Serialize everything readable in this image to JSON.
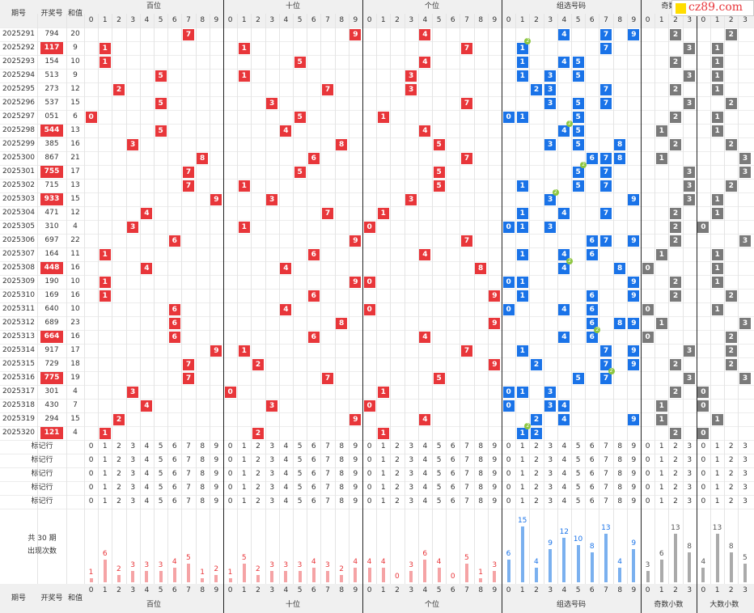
{
  "header": {
    "period_label": "期号",
    "draw_label": "开奖号",
    "sum_label": "和值",
    "groups": [
      "百位",
      "十位",
      "个位",
      "组选号码",
      "奇数小数",
      "大数小数"
    ],
    "top_group_5": "奇数",
    "digits": [
      "0",
      "1",
      "2",
      "3",
      "4",
      "5",
      "6",
      "7",
      "8",
      "9"
    ],
    "ratio_digits": [
      "0",
      "1",
      "2",
      "3"
    ]
  },
  "watermark": "cz89.com",
  "rows": [
    {
      "period": "2025291",
      "draw": "794",
      "sum": "20",
      "hl": false,
      "h": 7,
      "t": 9,
      "u": 4,
      "g": [
        4,
        7,
        9
      ],
      "odd": 2,
      "big": 2
    },
    {
      "period": "2025292",
      "draw": "117",
      "sum": "9",
      "hl": true,
      "h": 1,
      "t": 1,
      "u": 7,
      "g": [
        1,
        7
      ],
      "odd": 3,
      "big": 1
    },
    {
      "period": "2025293",
      "draw": "154",
      "sum": "10",
      "hl": false,
      "h": 1,
      "t": 5,
      "u": 4,
      "g": [
        1,
        4,
        5
      ],
      "odd": 2,
      "big": 1
    },
    {
      "period": "2025294",
      "draw": "513",
      "sum": "9",
      "hl": false,
      "h": 5,
      "t": 1,
      "u": 3,
      "g": [
        1,
        3,
        5
      ],
      "odd": 3,
      "big": 1
    },
    {
      "period": "2025295",
      "draw": "273",
      "sum": "12",
      "hl": false,
      "h": 2,
      "t": 7,
      "u": 3,
      "g": [
        2,
        3,
        7
      ],
      "odd": 2,
      "big": 1
    },
    {
      "period": "2025296",
      "draw": "537",
      "sum": "15",
      "hl": false,
      "h": 5,
      "t": 3,
      "u": 7,
      "g": [
        3,
        5,
        7
      ],
      "odd": 3,
      "big": 2
    },
    {
      "period": "2025297",
      "draw": "051",
      "sum": "6",
      "hl": false,
      "h": 0,
      "t": 5,
      "u": 1,
      "g": [
        0,
        1,
        5
      ],
      "odd": 2,
      "big": 1
    },
    {
      "period": "2025298",
      "draw": "544",
      "sum": "13",
      "hl": true,
      "h": 5,
      "t": 4,
      "u": 4,
      "g": [
        4,
        5
      ],
      "odd": 1,
      "big": 1
    },
    {
      "period": "2025299",
      "draw": "385",
      "sum": "16",
      "hl": false,
      "h": 3,
      "t": 8,
      "u": 5,
      "g": [
        3,
        5,
        8
      ],
      "odd": 2,
      "big": 2
    },
    {
      "period": "2025300",
      "draw": "867",
      "sum": "21",
      "hl": false,
      "h": 8,
      "t": 6,
      "u": 7,
      "g": [
        6,
        7,
        8
      ],
      "odd": 1,
      "big": 3
    },
    {
      "period": "2025301",
      "draw": "755",
      "sum": "17",
      "hl": true,
      "h": 7,
      "t": 5,
      "u": 5,
      "g": [
        5,
        7
      ],
      "odd": 3,
      "big": 3
    },
    {
      "period": "2025302",
      "draw": "715",
      "sum": "13",
      "hl": false,
      "h": 7,
      "t": 1,
      "u": 5,
      "g": [
        1,
        5,
        7
      ],
      "odd": 3,
      "big": 2
    },
    {
      "period": "2025303",
      "draw": "933",
      "sum": "15",
      "hl": true,
      "h": 9,
      "t": 3,
      "u": 3,
      "g": [
        3,
        9
      ],
      "odd": 3,
      "big": 1
    },
    {
      "period": "2025304",
      "draw": "471",
      "sum": "12",
      "hl": false,
      "h": 4,
      "t": 7,
      "u": 1,
      "g": [
        1,
        4,
        7
      ],
      "odd": 2,
      "big": 1
    },
    {
      "period": "2025305",
      "draw": "310",
      "sum": "4",
      "hl": false,
      "h": 3,
      "t": 1,
      "u": 0,
      "g": [
        0,
        1,
        3
      ],
      "odd": 2,
      "big": 0
    },
    {
      "period": "2025306",
      "draw": "697",
      "sum": "22",
      "hl": false,
      "h": 6,
      "t": 9,
      "u": 7,
      "g": [
        6,
        7,
        9
      ],
      "odd": 2,
      "big": 3
    },
    {
      "period": "2025307",
      "draw": "164",
      "sum": "11",
      "hl": false,
      "h": 1,
      "t": 6,
      "u": 4,
      "g": [
        1,
        4,
        6
      ],
      "odd": 1,
      "big": 1
    },
    {
      "period": "2025308",
      "draw": "448",
      "sum": "16",
      "hl": true,
      "h": 4,
      "t": 4,
      "u": 8,
      "g": [
        4,
        8
      ],
      "odd": 0,
      "big": 1
    },
    {
      "period": "2025309",
      "draw": "190",
      "sum": "10",
      "hl": false,
      "h": 1,
      "t": 9,
      "u": 0,
      "g": [
        0,
        1,
        9
      ],
      "odd": 2,
      "big": 1
    },
    {
      "period": "2025310",
      "draw": "169",
      "sum": "16",
      "hl": false,
      "h": 1,
      "t": 6,
      "u": 9,
      "g": [
        1,
        6,
        9
      ],
      "odd": 2,
      "big": 2
    },
    {
      "period": "2025311",
      "draw": "640",
      "sum": "10",
      "hl": false,
      "h": 6,
      "t": 4,
      "u": 0,
      "g": [
        0,
        4,
        6
      ],
      "odd": 0,
      "big": 1
    },
    {
      "period": "2025312",
      "draw": "689",
      "sum": "23",
      "hl": false,
      "h": 6,
      "t": 8,
      "u": 9,
      "g": [
        6,
        8,
        9
      ],
      "odd": 1,
      "big": 3
    },
    {
      "period": "2025313",
      "draw": "664",
      "sum": "16",
      "hl": true,
      "h": 6,
      "t": 6,
      "u": 4,
      "g": [
        4,
        6
      ],
      "odd": 0,
      "big": 2
    },
    {
      "period": "2025314",
      "draw": "917",
      "sum": "17",
      "hl": false,
      "h": 9,
      "t": 1,
      "u": 7,
      "g": [
        1,
        7,
        9
      ],
      "odd": 3,
      "big": 2
    },
    {
      "period": "2025315",
      "draw": "729",
      "sum": "18",
      "hl": false,
      "h": 7,
      "t": 2,
      "u": 9,
      "g": [
        2,
        7,
        9
      ],
      "odd": 2,
      "big": 2
    },
    {
      "period": "2025316",
      "draw": "775",
      "sum": "19",
      "hl": true,
      "h": 7,
      "t": 7,
      "u": 5,
      "g": [
        5,
        7
      ],
      "odd": 3,
      "big": 3
    },
    {
      "period": "2025317",
      "draw": "301",
      "sum": "4",
      "hl": false,
      "h": 3,
      "t": 0,
      "u": 1,
      "g": [
        0,
        1,
        3
      ],
      "odd": 2,
      "big": 0
    },
    {
      "period": "2025318",
      "draw": "430",
      "sum": "7",
      "hl": false,
      "h": 4,
      "t": 3,
      "u": 0,
      "g": [
        0,
        3,
        4
      ],
      "odd": 1,
      "big": 0
    },
    {
      "period": "2025319",
      "draw": "294",
      "sum": "15",
      "hl": false,
      "h": 2,
      "t": 9,
      "u": 4,
      "g": [
        2,
        4,
        9
      ],
      "odd": 1,
      "big": 1
    },
    {
      "period": "2025320",
      "draw": "121",
      "sum": "4",
      "hl": true,
      "h": 1,
      "t": 2,
      "u": 1,
      "g": [
        1,
        2
      ],
      "odd": 2,
      "big": 0
    }
  ],
  "doubles": [
    {
      "row": 1,
      "digit": 1
    },
    {
      "row": 7,
      "digit": 4
    },
    {
      "row": 10,
      "digit": 5
    },
    {
      "row": 12,
      "digit": 3
    },
    {
      "row": 17,
      "digit": 4
    },
    {
      "row": 22,
      "digit": 6
    },
    {
      "row": 25,
      "digit": 7
    },
    {
      "row": 29,
      "digit": 1
    }
  ],
  "marker_row_label": "标记行",
  "marker_rows": 5,
  "stats_label": "共 30 期",
  "stats_sublabel": "出现次数",
  "counts": {
    "hundreds": [
      1,
      6,
      2,
      3,
      3,
      3,
      4,
      5,
      1,
      2
    ],
    "tens": [
      1,
      5,
      2,
      3,
      3,
      3,
      4,
      3,
      2,
      4
    ],
    "units": [
      4,
      4,
      0,
      3,
      6,
      4,
      0,
      5,
      1,
      3
    ],
    "group": [
      6,
      15,
      4,
      9,
      12,
      10,
      8,
      13,
      4,
      9
    ],
    "odd": [
      3,
      6,
      13,
      8
    ],
    "big": [
      4,
      13,
      8,
      5
    ]
  },
  "colors": {
    "red": "#e8363a",
    "blue": "#1a73e8",
    "gray": "#7a7a7a",
    "redbar": "#f5a3a5",
    "bluebar": "#7ab0ef",
    "graybar": "#aaaaaa"
  }
}
